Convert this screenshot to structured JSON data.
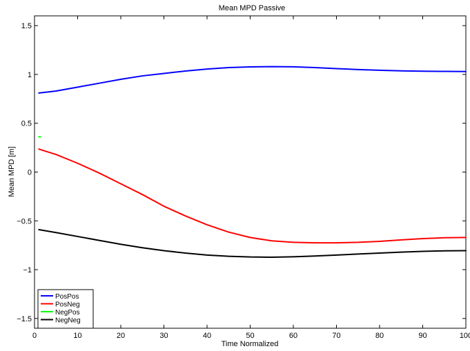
{
  "chart_data": {
    "type": "line",
    "title": "Mean MPD Passive",
    "xlabel": "Time Normalized",
    "ylabel": "Mean MPD [m]",
    "xlim": [
      0,
      100
    ],
    "ylim": [
      -1.6,
      1.6
    ],
    "xticks": [
      0,
      10,
      20,
      30,
      40,
      50,
      60,
      70,
      80,
      90,
      100
    ],
    "yticks": [
      -1.5,
      -1,
      -0.5,
      0,
      0.5,
      1,
      1.5
    ],
    "xtick_labels": [
      "0",
      "10",
      "20",
      "30",
      "40",
      "50",
      "60",
      "70",
      "80",
      "90",
      "100"
    ],
    "ytick_labels": [
      "−1.5",
      "−1",
      "−0.5",
      "0",
      "0.5",
      "1",
      "1.5"
    ],
    "grid": false,
    "legend_position": "bottom-left",
    "x": [
      1,
      5,
      10,
      15,
      20,
      25,
      30,
      35,
      40,
      45,
      50,
      55,
      60,
      65,
      70,
      75,
      80,
      85,
      90,
      95,
      100
    ],
    "series": [
      {
        "name": "PosPos",
        "color": "#0000ff",
        "values": [
          0.81,
          0.83,
          0.87,
          0.91,
          0.95,
          0.985,
          1.01,
          1.035,
          1.055,
          1.07,
          1.077,
          1.08,
          1.078,
          1.07,
          1.06,
          1.05,
          1.043,
          1.037,
          1.033,
          1.031,
          1.03
        ]
      },
      {
        "name": "PosNeg",
        "color": "#ff0000",
        "values": [
          0.235,
          0.18,
          0.09,
          -0.01,
          -0.12,
          -0.23,
          -0.35,
          -0.45,
          -0.54,
          -0.615,
          -0.67,
          -0.705,
          -0.72,
          -0.725,
          -0.725,
          -0.72,
          -0.71,
          -0.695,
          -0.682,
          -0.673,
          -0.67
        ]
      },
      {
        "name": "NegPos",
        "color": "#00ff00",
        "x": [
          1,
          1.4
        ],
        "values": [
          0.36,
          0.36
        ]
      },
      {
        "name": "NegNeg",
        "color": "#000000",
        "values": [
          -0.59,
          -0.62,
          -0.66,
          -0.7,
          -0.74,
          -0.775,
          -0.805,
          -0.83,
          -0.85,
          -0.863,
          -0.87,
          -0.872,
          -0.868,
          -0.86,
          -0.85,
          -0.84,
          -0.83,
          -0.82,
          -0.812,
          -0.807,
          -0.805
        ]
      }
    ]
  }
}
